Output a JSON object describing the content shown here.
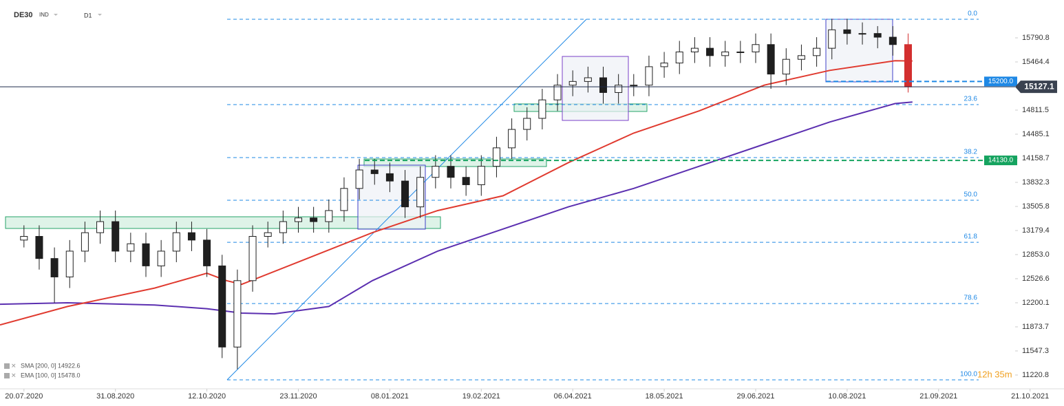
{
  "chart_data": {
    "type": "candlestick",
    "symbol": "DE30",
    "market": "IND",
    "interval": "D1",
    "x": [
      0,
      7,
      14,
      21,
      28,
      35,
      42,
      49,
      56,
      63,
      70,
      77,
      84,
      91,
      98,
      105,
      112,
      119,
      126,
      133,
      140,
      147,
      154,
      161,
      168,
      175,
      182,
      189,
      196,
      203,
      210,
      217,
      224,
      231,
      238,
      245,
      252,
      259,
      266,
      273,
      280,
      287,
      294,
      301,
      308,
      315,
      322,
      329,
      336,
      343,
      350,
      357,
      364,
      371,
      378,
      385,
      392,
      399,
      406
    ],
    "opens": [
      13050,
      13100,
      12800,
      12550,
      12900,
      13150,
      13300,
      12900,
      13000,
      12700,
      12900,
      13150,
      13050,
      12700,
      11600,
      12500,
      13100,
      13150,
      13300,
      13350,
      13300,
      13450,
      13750,
      14000,
      13950,
      13850,
      13500,
      13900,
      14050,
      13900,
      13800,
      14050,
      14300,
      14550,
      14700,
      14950,
      15150,
      15200,
      15250,
      15050,
      15150,
      15150,
      15400,
      15450,
      15600,
      15650,
      15550,
      15600,
      15600,
      15700,
      15300,
      15500,
      15550,
      15650,
      15900,
      15850,
      15850,
      15800,
      15700
    ],
    "highs": [
      13250,
      13250,
      12950,
      13050,
      13300,
      13450,
      13450,
      13150,
      13150,
      13050,
      13300,
      13300,
      13200,
      12850,
      12650,
      13250,
      13300,
      13450,
      13500,
      13500,
      13600,
      13900,
      14150,
      14150,
      14100,
      14000,
      14050,
      14200,
      14200,
      14050,
      14200,
      14450,
      14700,
      14850,
      15100,
      15300,
      15350,
      15400,
      15400,
      15300,
      15300,
      15550,
      15600,
      15750,
      15800,
      15800,
      15750,
      15750,
      15850,
      15850,
      15650,
      15700,
      15800,
      16050,
      16050,
      16000,
      15950,
      15950,
      15850
    ],
    "lows": [
      12950,
      12650,
      12200,
      12400,
      12750,
      13000,
      12750,
      12750,
      12550,
      12550,
      12750,
      12900,
      12550,
      11450,
      11300,
      12350,
      12950,
      13000,
      13150,
      13150,
      13150,
      13300,
      13600,
      13800,
      13700,
      13350,
      13350,
      13750,
      13750,
      13650,
      13650,
      13900,
      14150,
      14400,
      14550,
      14800,
      15000,
      15050,
      14900,
      14900,
      15000,
      15000,
      15250,
      15300,
      15450,
      15400,
      15400,
      15450,
      15450,
      15100,
      15150,
      15350,
      15400,
      15500,
      15700,
      15700,
      15650,
      15550,
      15050
    ],
    "closes": [
      13100,
      12800,
      12550,
      12900,
      13150,
      13300,
      12900,
      13000,
      12700,
      12900,
      13150,
      13050,
      12700,
      11600,
      12500,
      13100,
      13150,
      13300,
      13350,
      13300,
      13450,
      13750,
      14000,
      13950,
      13850,
      13500,
      13900,
      14050,
      13900,
      13800,
      14050,
      14300,
      14550,
      14700,
      14950,
      15150,
      15200,
      15250,
      15050,
      15150,
      15150,
      15400,
      15450,
      15600,
      15650,
      15550,
      15600,
      15600,
      15700,
      15300,
      15500,
      15550,
      15650,
      15900,
      15850,
      15850,
      15800,
      15700,
      15127
    ],
    "up_color": "#ffffff",
    "down_color": "#1f1f1f",
    "last_color": "#d32f2f",
    "lines": [
      {
        "name": "SMA [200, 0] 14922.6",
        "color": "#5b2fb0",
        "x": [
          -11,
          20,
          60,
          84,
          100,
          115,
          140,
          160,
          190,
          220,
          250,
          280,
          310,
          340,
          370,
          400,
          408
        ],
        "values": [
          12180,
          12200,
          12170,
          12120,
          12060,
          12050,
          12150,
          12500,
          12900,
          13200,
          13500,
          13750,
          14050,
          14350,
          14650,
          14900,
          14922
        ]
      },
      {
        "name": "EMA [100, 0] 15478.0",
        "color": "#e03a2f",
        "x": [
          -11,
          20,
          60,
          84,
          93,
          100,
          130,
          160,
          190,
          220,
          250,
          280,
          310,
          340,
          370,
          400,
          408
        ],
        "values": [
          11900,
          12150,
          12400,
          12600,
          12500,
          12450,
          12800,
          13150,
          13450,
          13650,
          14100,
          14500,
          14800,
          15150,
          15350,
          15480,
          15478
        ]
      }
    ],
    "fib_levels": [
      {
        "name": "0.0",
        "value": 16043
      },
      {
        "name": "23.6",
        "value": 14886
      },
      {
        "name": "38.2",
        "value": 14168
      },
      {
        "name": "50.0",
        "value": 13590
      },
      {
        "name": "61.8",
        "value": 13020
      },
      {
        "name": "78.6",
        "value": 12190
      },
      {
        "name": "100.0",
        "value": 11155
      }
    ],
    "price_levels": [
      {
        "value": 15200,
        "label": "15200.0",
        "color": "#1e88e5"
      },
      {
        "value": 14130,
        "label": "14130.0",
        "color": "#15a35f"
      }
    ],
    "last_price": {
      "value": 15127.1,
      "label": "15127.1"
    },
    "timer": "12h 35m",
    "xlim": [
      -11,
      470
    ],
    "xticks": [
      {
        "value": 0,
        "label": "20.07.2020"
      },
      {
        "value": 42,
        "label": "31.08.2020"
      },
      {
        "value": 84,
        "label": "12.10.2020"
      },
      {
        "value": 126,
        "label": "23.11.2020"
      },
      {
        "value": 168,
        "label": "08.01.2021"
      },
      {
        "value": 210,
        "label": "19.02.2021"
      },
      {
        "value": 252,
        "label": "06.04.2021"
      },
      {
        "value": 294,
        "label": "18.05.2021"
      },
      {
        "value": 336,
        "label": "29.06.2021"
      },
      {
        "value": 378,
        "label": "10.08.2021"
      },
      {
        "value": 420,
        "label": "21.09.2021"
      },
      {
        "value": 462,
        "label": "21.10.2021"
      }
    ],
    "ylim": [
      11034,
      16304
    ],
    "yticks": [
      15790.8,
      15464.4,
      14811.5,
      14485.1,
      14158.7,
      13832.3,
      13505.8,
      13179.4,
      {
        "value": 12853,
        "label": "12853.0"
      },
      12526.6,
      12200.1,
      11873.7,
      11547.3,
      11220.8
    ]
  }
}
